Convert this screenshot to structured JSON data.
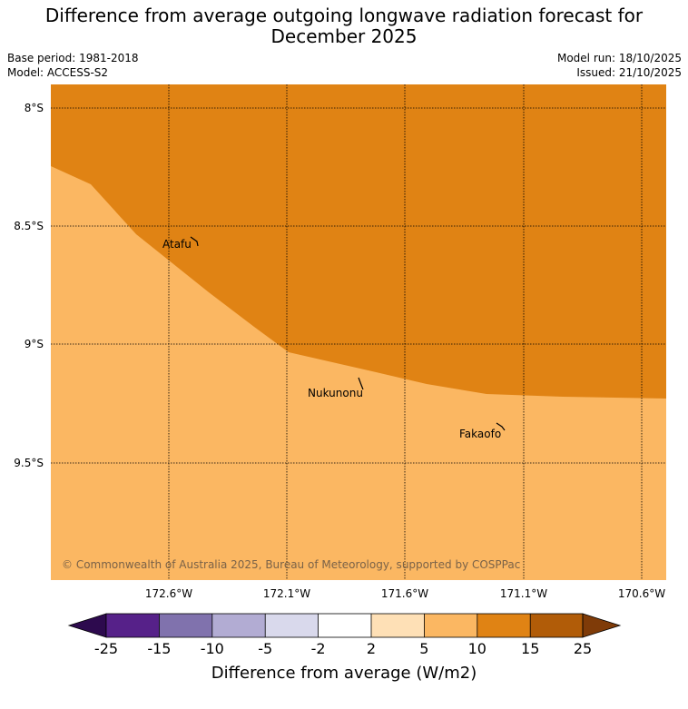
{
  "title_line1": "Difference from average outgoing longwave radiation forecast for",
  "title_line2": "December 2025",
  "base_period": "Base period: 1981-2018",
  "model": "Model: ACCESS-S2",
  "model_run": "Model run: 18/10/2025",
  "issued": "Issued: 21/10/2025",
  "lat_labels": [
    "8°S",
    "8.5°S",
    "9°S",
    "9.5°S"
  ],
  "lon_labels": [
    "172.6°W",
    "172.1°W",
    "171.6°W",
    "171.1°W",
    "170.6°W"
  ],
  "places": [
    {
      "name": "Atafu"
    },
    {
      "name": "Nukunonu"
    },
    {
      "name": "Fakaofo"
    }
  ],
  "copyright": "© Commonwealth of Australia 2025, Bureau of Meteorology, supported by COSPPac",
  "colorbar": {
    "ticks": [
      "-25",
      "-15",
      "-10",
      "-5",
      "-2",
      "2",
      "5",
      "10",
      "15",
      "25"
    ],
    "label": "Difference from average (W/m2)",
    "colors": [
      "#2d0a4e",
      "#562189",
      "#8072ad",
      "#b2acd3",
      "#d9d9ec",
      "#ffffff",
      "#fee0b6",
      "#fbb762",
      "#e08314",
      "#b15c08",
      "#7f3b08"
    ]
  },
  "map_colors": {
    "band_10_15": "#e08314",
    "band_5_10": "#fbb762"
  }
}
